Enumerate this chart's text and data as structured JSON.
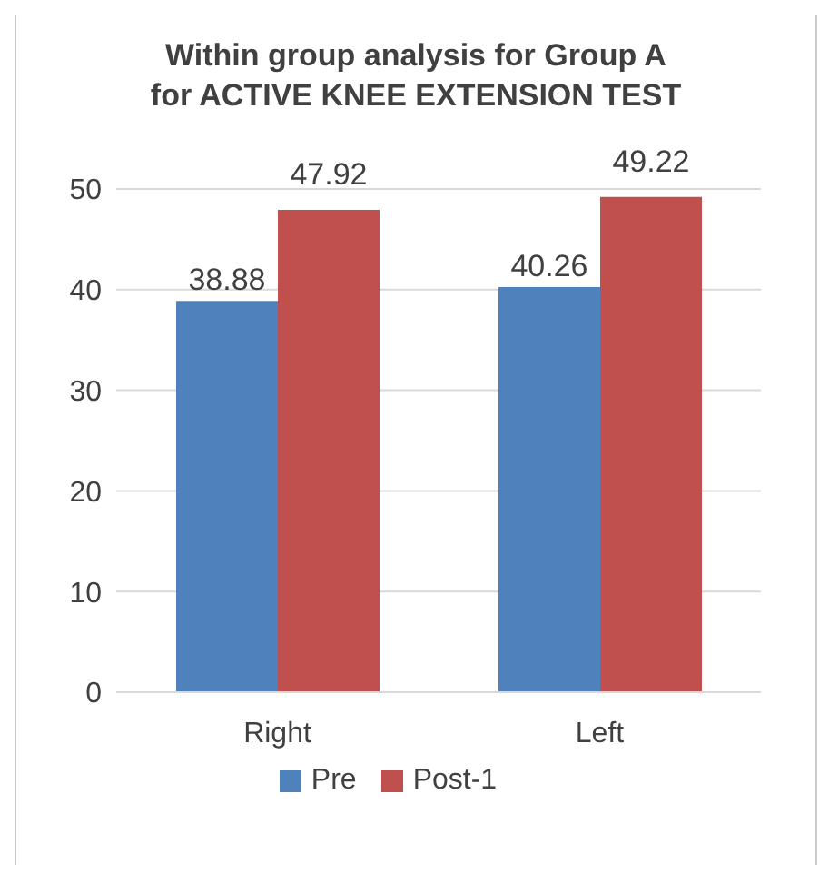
{
  "chart_data": {
    "type": "bar",
    "title": "Within group analysis for Group A for ACTIVE KNEE EXTENSION TEST",
    "categories": [
      "Right",
      "Left"
    ],
    "series": [
      {
        "name": "Pre",
        "color": "#4f81bd",
        "values": [
          38.88,
          40.26
        ]
      },
      {
        "name": "Post-1",
        "color": "#c0504d",
        "values": [
          47.92,
          49.22
        ]
      }
    ],
    "ylim": [
      0,
      50
    ],
    "yticks": [
      0,
      10,
      20,
      30,
      40,
      50
    ],
    "grid": "y",
    "legend": "bottom",
    "data_labels": true
  }
}
